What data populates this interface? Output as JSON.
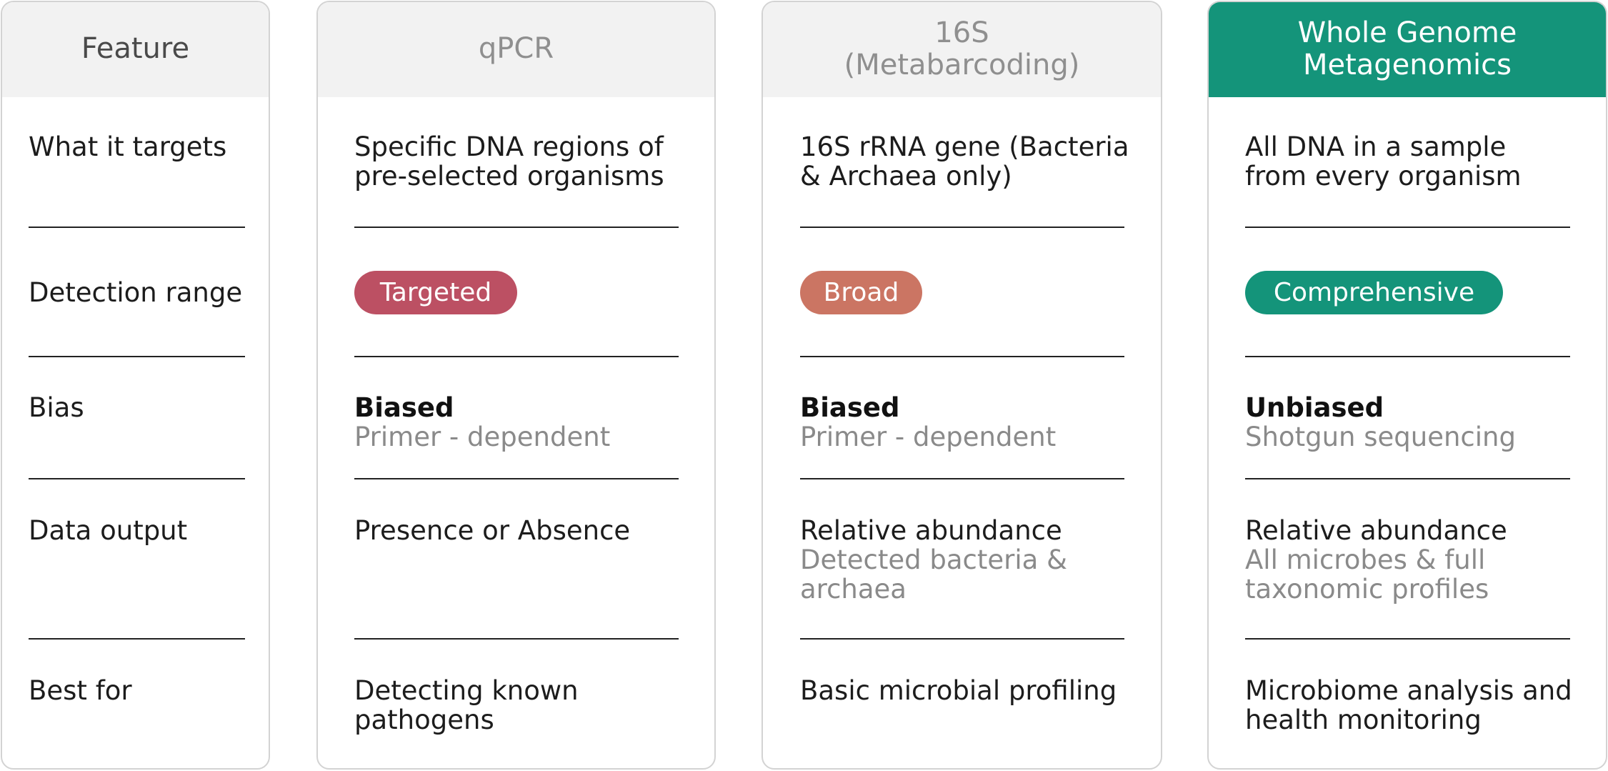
{
  "columns": {
    "feature": {
      "header": "Feature"
    },
    "qpcr": {
      "header": "qPCR"
    },
    "s16": {
      "header": "16S\n(Metabarcoding)"
    },
    "wgm": {
      "header": "Whole Genome\nMetagenomics"
    }
  },
  "rows": {
    "targets": {
      "label": "What it targets",
      "qpcr": "Specific DNA regions of pre-selected organisms",
      "s16": "16S rRNA gene (Bacteria & Archaea only)",
      "wgm": "All DNA in a sample from every organism"
    },
    "detection": {
      "label": "Detection range",
      "qpcr": "Targeted",
      "s16": "Broad",
      "wgm": "Comprehensive"
    },
    "bias": {
      "label": "Bias",
      "qpcr_title": "Biased",
      "qpcr_sub": "Primer - dependent",
      "s16_title": "Biased",
      "s16_sub": "Primer - dependent",
      "wgm_title": "Unbiased",
      "wgm_sub": "Shotgun sequencing"
    },
    "output": {
      "label": "Data output",
      "qpcr": "Presence or Absence",
      "s16_title": "Relative abundance",
      "s16_sub": "Detected bacteria & archaea",
      "wgm_title": "Relative abundance",
      "wgm_sub": "All microbes & full taxonomic profiles"
    },
    "best": {
      "label": "Best for",
      "qpcr": "Detecting known pathogens",
      "s16": "Basic microbial profiling",
      "wgm": "Microbiome analysis and health monitoring"
    }
  },
  "colors": {
    "accent": "#14947a",
    "targeted_badge": "#bc5063",
    "broad_badge": "#cb7563",
    "comprehensive_badge": "#14947a",
    "header_bg": "#f2f2f2",
    "muted_text": "#8a8a8a"
  }
}
